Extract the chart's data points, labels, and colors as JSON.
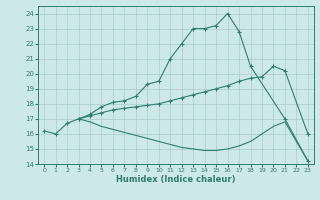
{
  "xlabel": "Humidex (Indice chaleur)",
  "background_color": "#cce8e8",
  "grid_color": "#aacccc",
  "line_color": "#2e7d72",
  "xlim": [
    -0.5,
    23.5
  ],
  "ylim": [
    14,
    24.5
  ],
  "yticks": [
    14,
    15,
    16,
    17,
    18,
    19,
    20,
    21,
    22,
    23,
    24
  ],
  "xticks": [
    0,
    1,
    2,
    3,
    4,
    5,
    6,
    7,
    8,
    9,
    10,
    11,
    12,
    13,
    14,
    15,
    16,
    17,
    18,
    19,
    20,
    21,
    22,
    23
  ],
  "line1_x": [
    0,
    1,
    2,
    3,
    4,
    5,
    6,
    7,
    8,
    9,
    10,
    11,
    12,
    13,
    14,
    15,
    16,
    17,
    18,
    21,
    23
  ],
  "line1_y": [
    16.2,
    16.0,
    16.7,
    17.0,
    17.3,
    17.8,
    18.1,
    18.2,
    18.5,
    19.3,
    19.5,
    21.0,
    22.0,
    23.0,
    23.0,
    23.2,
    24.0,
    22.8,
    20.5,
    17.0,
    14.2
  ],
  "line2_x": [
    3,
    4,
    5,
    6,
    7,
    8,
    9,
    10,
    11,
    12,
    13,
    14,
    15,
    16,
    17,
    18,
    19,
    20,
    21,
    23
  ],
  "line2_y": [
    17.0,
    17.2,
    17.4,
    17.6,
    17.7,
    17.8,
    17.9,
    18.0,
    18.2,
    18.4,
    18.6,
    18.8,
    19.0,
    19.2,
    19.5,
    19.7,
    19.8,
    20.5,
    20.2,
    16.0
  ],
  "line3_x": [
    3,
    4,
    5,
    6,
    7,
    8,
    9,
    10,
    11,
    12,
    13,
    14,
    15,
    16,
    17,
    18,
    19,
    20,
    21,
    22,
    23
  ],
  "line3_y": [
    17.0,
    16.8,
    16.5,
    16.3,
    16.1,
    15.9,
    15.7,
    15.5,
    15.3,
    15.1,
    15.0,
    14.9,
    14.9,
    15.0,
    15.2,
    15.5,
    16.0,
    16.5,
    16.8,
    15.5,
    14.2
  ]
}
